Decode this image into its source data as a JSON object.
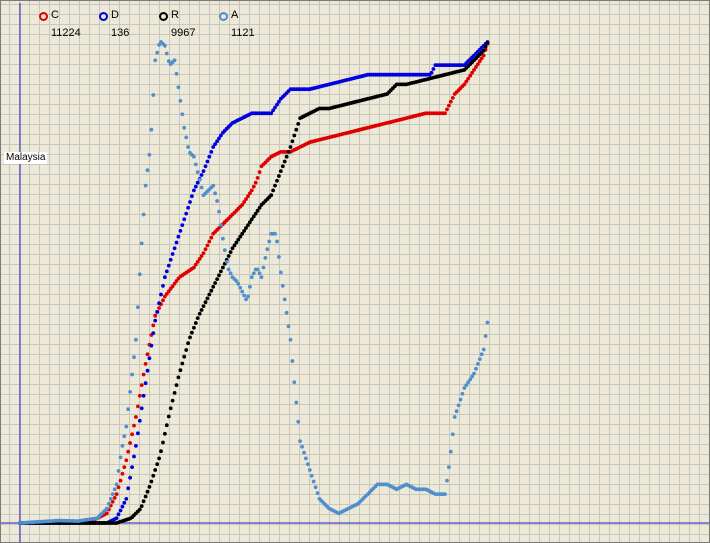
{
  "country": "Malaysia",
  "legend": [
    {
      "label": "C",
      "count": "11224",
      "color": "#e00000"
    },
    {
      "label": "D",
      "count": "136",
      "color": "#0000e0"
    },
    {
      "label": "R",
      "count": "9967",
      "color": "#000000"
    },
    {
      "label": "A",
      "count": "1121",
      "color": "#4f8fcf"
    }
  ],
  "chart_data": {
    "type": "scatter",
    "title": "",
    "xlabel": "",
    "ylabel": "",
    "grid": true,
    "legend_placement": "top-left",
    "xlim": [
      0,
      500
    ],
    "ylim": [
      0,
      1
    ],
    "y_units": "fraction of series maximum",
    "series": [
      {
        "name": "C",
        "color": "#e00000",
        "points": [
          [
            0,
            0
          ],
          [
            50,
            0.002
          ],
          [
            75,
            0.005
          ],
          [
            90,
            0.02
          ],
          [
            100,
            0.06
          ],
          [
            110,
            0.13
          ],
          [
            120,
            0.22
          ],
          [
            130,
            0.33
          ],
          [
            140,
            0.43
          ],
          [
            150,
            0.47
          ],
          [
            165,
            0.51
          ],
          [
            180,
            0.53
          ],
          [
            190,
            0.56
          ],
          [
            200,
            0.6
          ],
          [
            210,
            0.62
          ],
          [
            220,
            0.64
          ],
          [
            230,
            0.66
          ],
          [
            240,
            0.69
          ],
          [
            245,
            0.71
          ],
          [
            250,
            0.74
          ],
          [
            260,
            0.76
          ],
          [
            270,
            0.77
          ],
          [
            280,
            0.77
          ],
          [
            290,
            0.78
          ],
          [
            300,
            0.79
          ],
          [
            320,
            0.8
          ],
          [
            340,
            0.81
          ],
          [
            360,
            0.82
          ],
          [
            380,
            0.83
          ],
          [
            400,
            0.84
          ],
          [
            420,
            0.85
          ],
          [
            440,
            0.85
          ],
          [
            445,
            0.87
          ],
          [
            450,
            0.89
          ],
          [
            460,
            0.91
          ],
          [
            470,
            0.94
          ],
          [
            480,
            0.97
          ],
          [
            485,
            1.0
          ]
        ]
      },
      {
        "name": "D",
        "color": "#0000e0",
        "points": [
          [
            0,
            0
          ],
          [
            90,
            0.0
          ],
          [
            100,
            0.01
          ],
          [
            110,
            0.05
          ],
          [
            120,
            0.16
          ],
          [
            130,
            0.29
          ],
          [
            140,
            0.42
          ],
          [
            150,
            0.51
          ],
          [
            160,
            0.57
          ],
          [
            170,
            0.63
          ],
          [
            180,
            0.69
          ],
          [
            190,
            0.73
          ],
          [
            200,
            0.78
          ],
          [
            210,
            0.81
          ],
          [
            220,
            0.83
          ],
          [
            240,
            0.85
          ],
          [
            260,
            0.85
          ],
          [
            270,
            0.88
          ],
          [
            280,
            0.9
          ],
          [
            300,
            0.9
          ],
          [
            320,
            0.91
          ],
          [
            340,
            0.92
          ],
          [
            360,
            0.93
          ],
          [
            380,
            0.93
          ],
          [
            400,
            0.93
          ],
          [
            425,
            0.93
          ],
          [
            430,
            0.95
          ],
          [
            460,
            0.95
          ],
          [
            470,
            0.97
          ],
          [
            480,
            0.99
          ],
          [
            485,
            1.0
          ]
        ]
      },
      {
        "name": "R",
        "color": "#000000",
        "points": [
          [
            0,
            0
          ],
          [
            100,
            0.0
          ],
          [
            115,
            0.01
          ],
          [
            125,
            0.03
          ],
          [
            135,
            0.08
          ],
          [
            145,
            0.14
          ],
          [
            155,
            0.23
          ],
          [
            165,
            0.31
          ],
          [
            175,
            0.38
          ],
          [
            185,
            0.43
          ],
          [
            200,
            0.49
          ],
          [
            210,
            0.53
          ],
          [
            220,
            0.57
          ],
          [
            230,
            0.6
          ],
          [
            240,
            0.63
          ],
          [
            250,
            0.66
          ],
          [
            260,
            0.68
          ],
          [
            270,
            0.73
          ],
          [
            280,
            0.78
          ],
          [
            285,
            0.81
          ],
          [
            290,
            0.84
          ],
          [
            300,
            0.85
          ],
          [
            310,
            0.86
          ],
          [
            320,
            0.86
          ],
          [
            340,
            0.87
          ],
          [
            360,
            0.88
          ],
          [
            380,
            0.89
          ],
          [
            390,
            0.91
          ],
          [
            400,
            0.91
          ],
          [
            420,
            0.92
          ],
          [
            440,
            0.93
          ],
          [
            460,
            0.94
          ],
          [
            470,
            0.96
          ],
          [
            480,
            0.98
          ],
          [
            485,
            1.0
          ]
        ]
      },
      {
        "name": "A",
        "color": "#4f8fcf",
        "points": [
          [
            0,
            0
          ],
          [
            40,
            0.005
          ],
          [
            60,
            0.004
          ],
          [
            80,
            0.01
          ],
          [
            90,
            0.03
          ],
          [
            100,
            0.08
          ],
          [
            105,
            0.15
          ],
          [
            110,
            0.2
          ],
          [
            115,
            0.29
          ],
          [
            120,
            0.38
          ],
          [
            125,
            0.55
          ],
          [
            130,
            0.7
          ],
          [
            135,
            0.78
          ],
          [
            140,
            0.96
          ],
          [
            145,
            1.0
          ],
          [
            150,
            0.99
          ],
          [
            155,
            0.95
          ],
          [
            160,
            0.96
          ],
          [
            165,
            0.89
          ],
          [
            170,
            0.82
          ],
          [
            175,
            0.77
          ],
          [
            180,
            0.76
          ],
          [
            190,
            0.68
          ],
          [
            200,
            0.7
          ],
          [
            205,
            0.66
          ],
          [
            210,
            0.59
          ],
          [
            215,
            0.53
          ],
          [
            220,
            0.51
          ],
          [
            225,
            0.5
          ],
          [
            230,
            0.48
          ],
          [
            235,
            0.46
          ],
          [
            240,
            0.51
          ],
          [
            245,
            0.53
          ],
          [
            250,
            0.51
          ],
          [
            255,
            0.56
          ],
          [
            260,
            0.6
          ],
          [
            265,
            0.6
          ],
          [
            270,
            0.52
          ],
          [
            280,
            0.38
          ],
          [
            285,
            0.27
          ],
          [
            290,
            0.17
          ],
          [
            300,
            0.11
          ],
          [
            310,
            0.05
          ],
          [
            320,
            0.03
          ],
          [
            330,
            0.02
          ],
          [
            340,
            0.03
          ],
          [
            350,
            0.04
          ],
          [
            360,
            0.06
          ],
          [
            370,
            0.08
          ],
          [
            380,
            0.08
          ],
          [
            390,
            0.07
          ],
          [
            400,
            0.08
          ],
          [
            410,
            0.07
          ],
          [
            420,
            0.07
          ],
          [
            430,
            0.06
          ],
          [
            440,
            0.06
          ],
          [
            445,
            0.13
          ],
          [
            450,
            0.22
          ],
          [
            460,
            0.28
          ],
          [
            470,
            0.31
          ],
          [
            480,
            0.36
          ],
          [
            485,
            0.43
          ]
        ]
      }
    ]
  }
}
